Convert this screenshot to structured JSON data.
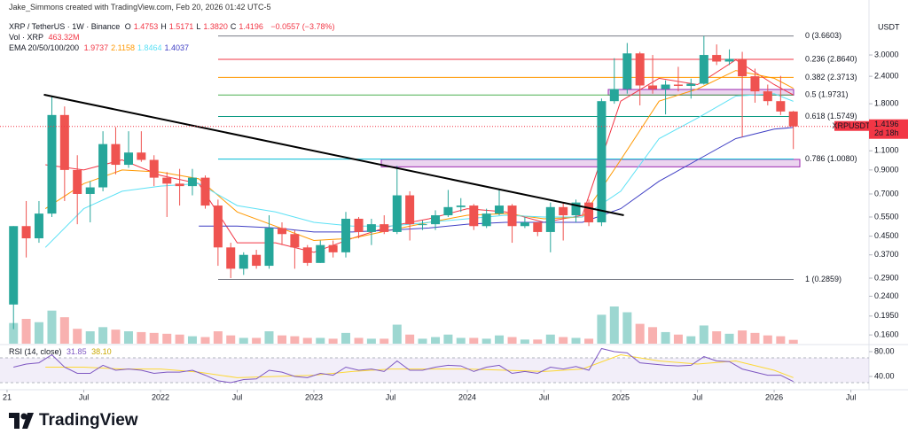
{
  "header": {
    "author_line": "Jake_Simmons created with TradingView.com, Feb 20, 2026 01:42 UTC-5",
    "symbol": "XRP / TetherUS · 1W · Binance",
    "ohlc": [
      {
        "key": "O",
        "value": "1.4753"
      },
      {
        "key": "H",
        "value": "1.5171"
      },
      {
        "key": "L",
        "value": "1.3820"
      },
      {
        "key": "C",
        "value": "1.4196"
      }
    ],
    "change": "−0.0557 (−3.78%)",
    "volume_label": "Vol · XRP",
    "volume_value": "463.32M",
    "ema_label": "EMA 20/50/100/200",
    "ema_values": [
      "1.9737",
      "2.1158",
      "1.8464",
      "1.4037"
    ]
  },
  "chart_data": {
    "type": "candlestick",
    "currency": "USDT",
    "log_scale": true,
    "grid": false,
    "x": [
      2021.042,
      2021.125,
      2021.208,
      2021.292,
      2021.375,
      2021.458,
      2021.542,
      2021.625,
      2021.708,
      2021.792,
      2021.875,
      2021.958,
      2022.042,
      2022.125,
      2022.208,
      2022.292,
      2022.375,
      2022.458,
      2022.542,
      2022.625,
      2022.708,
      2022.792,
      2022.875,
      2022.958,
      2023.042,
      2023.125,
      2023.208,
      2023.292,
      2023.375,
      2023.458,
      2023.542,
      2023.625,
      2023.708,
      2023.792,
      2023.875,
      2023.958,
      2024.042,
      2024.125,
      2024.208,
      2024.292,
      2024.375,
      2024.458,
      2024.542,
      2024.625,
      2024.708,
      2024.792,
      2024.875,
      2024.958,
      2025.042,
      2025.125,
      2025.208,
      2025.292,
      2025.375,
      2025.458,
      2025.542,
      2025.625,
      2025.708,
      2025.792,
      2025.875,
      2025.958,
      2026.042,
      2026.125
    ],
    "open": [
      0.22,
      0.5,
      0.44,
      0.57,
      1.6,
      0.9,
      0.7,
      0.75,
      1.18,
      0.95,
      1.08,
      1.0,
      0.83,
      0.78,
      0.76,
      0.83,
      0.62,
      0.4,
      0.32,
      0.37,
      0.33,
      0.49,
      0.46,
      0.4,
      0.34,
      0.41,
      0.38,
      0.54,
      0.47,
      0.51,
      0.47,
      0.69,
      0.51,
      0.51,
      0.56,
      0.61,
      0.62,
      0.5,
      0.57,
      0.62,
      0.5,
      0.52,
      0.47,
      0.61,
      0.56,
      0.64,
      0.52,
      1.85,
      2.1,
      3.05,
      2.18,
      2.1,
      2.2,
      2.17,
      2.22,
      3.0,
      2.8,
      2.88,
      2.4,
      2.05,
      1.85,
      1.66
    ],
    "high": [
      0.5,
      0.65,
      0.65,
      1.96,
      1.75,
      1.05,
      0.8,
      1.35,
      1.41,
      1.35,
      1.35,
      1.05,
      0.88,
      0.91,
      0.91,
      0.85,
      0.66,
      0.42,
      0.38,
      0.39,
      0.56,
      0.52,
      0.48,
      0.41,
      0.43,
      0.43,
      0.58,
      0.55,
      0.54,
      0.56,
      0.94,
      0.72,
      0.53,
      0.59,
      0.73,
      0.67,
      0.63,
      0.6,
      0.74,
      0.63,
      0.55,
      0.52,
      0.64,
      0.64,
      0.66,
      0.66,
      1.9,
      2.9,
      3.4,
      3.1,
      3.0,
      2.3,
      2.65,
      2.34,
      3.66,
      3.35,
      3.18,
      3.1,
      2.6,
      2.2,
      2.41,
      1.67
    ],
    "low": [
      0.17,
      0.36,
      0.42,
      0.55,
      0.65,
      0.51,
      0.52,
      0.72,
      0.86,
      0.92,
      0.98,
      0.76,
      0.55,
      0.62,
      0.69,
      0.6,
      0.33,
      0.29,
      0.3,
      0.32,
      0.32,
      0.41,
      0.32,
      0.33,
      0.34,
      0.36,
      0.36,
      0.44,
      0.41,
      0.46,
      0.46,
      0.43,
      0.48,
      0.48,
      0.55,
      0.58,
      0.48,
      0.49,
      0.56,
      0.42,
      0.49,
      0.45,
      0.38,
      0.43,
      0.52,
      0.5,
      0.5,
      1.8,
      2.0,
      1.77,
      2.0,
      1.61,
      2.05,
      1.9,
      2.2,
      2.7,
      2.7,
      1.27,
      1.82,
      1.77,
      1.6,
      1.12
    ],
    "close": [
      0.5,
      0.44,
      0.57,
      1.6,
      0.9,
      0.7,
      0.75,
      1.18,
      0.95,
      1.08,
      1.0,
      0.83,
      0.78,
      0.76,
      0.83,
      0.62,
      0.4,
      0.32,
      0.37,
      0.33,
      0.49,
      0.46,
      0.4,
      0.34,
      0.41,
      0.38,
      0.54,
      0.47,
      0.51,
      0.47,
      0.69,
      0.51,
      0.51,
      0.56,
      0.61,
      0.62,
      0.5,
      0.57,
      0.62,
      0.5,
      0.52,
      0.47,
      0.61,
      0.56,
      0.64,
      0.52,
      1.85,
      2.1,
      3.05,
      2.18,
      2.1,
      2.2,
      2.17,
      2.22,
      3.0,
      2.8,
      2.88,
      2.4,
      2.05,
      1.85,
      1.66,
      1.4196
    ],
    "volume": [
      2500,
      3000,
      2600,
      4000,
      3200,
      1800,
      1500,
      2000,
      1700,
      1500,
      1400,
      1300,
      1200,
      1100,
      900,
      800,
      1500,
      1000,
      700,
      700,
      1500,
      1000,
      900,
      700,
      700,
      600,
      1300,
      700,
      600,
      600,
      2300,
      1100,
      600,
      800,
      1100,
      700,
      700,
      600,
      1000,
      800,
      500,
      500,
      1100,
      800,
      700,
      600,
      3500,
      4500,
      3800,
      2400,
      2000,
      1400,
      1100,
      900,
      2200,
      1500,
      1200,
      1600,
      1300,
      1000,
      900,
      463.32
    ],
    "up_color": "#26a69a",
    "down_color": "#ef5350",
    "xlim": [
      2020.954,
      2026.618
    ],
    "xticks": [
      {
        "value": 2021,
        "label": "21"
      },
      {
        "value": 2021.5,
        "label": "Jul"
      },
      2022,
      {
        "value": 2022.5,
        "label": "Jul"
      },
      2023,
      {
        "value": 2023.5,
        "label": "Jul"
      },
      2024,
      {
        "value": 2024.5,
        "label": "Jul"
      },
      2025,
      {
        "value": 2025.5,
        "label": "Jul"
      },
      2026,
      {
        "value": 2026.5,
        "label": "Jul"
      }
    ],
    "ylim": [
      0.146,
      4.23
    ],
    "yticks": [
      {
        "value": 3,
        "label": "3.0000"
      },
      {
        "value": 2.4,
        "label": "2.4000"
      },
      {
        "value": 1.8,
        "label": "1.8000"
      },
      {
        "value": 1.1,
        "label": "1.1000"
      },
      {
        "value": 0.9,
        "label": "0.9000"
      },
      {
        "value": 0.7,
        "label": "0.7000"
      },
      {
        "value": 0.55,
        "label": "0.5500"
      },
      {
        "value": 0.45,
        "label": "0.4500"
      },
      {
        "value": 0.37,
        "label": "0.3700"
      },
      {
        "value": 0.29,
        "label": "0.2900"
      },
      {
        "value": 0.24,
        "label": "0.2400"
      },
      {
        "value": 0.195,
        "label": "0.1950"
      },
      {
        "value": 0.16,
        "label": "0.1600"
      }
    ],
    "ema": {
      "x": [
        2021.25,
        2021.5,
        2021.75,
        2022.0,
        2022.25,
        2022.5,
        2022.75,
        2023.0,
        2023.25,
        2023.5,
        2023.75,
        2024.0,
        2024.25,
        2024.5,
        2024.75,
        2025.0,
        2025.25,
        2025.5,
        2025.75,
        2026.0,
        2026.125
      ],
      "series": [
        {
          "color": "#f23645",
          "values": [
            0.95,
            0.9,
            1.0,
            0.85,
            0.78,
            0.42,
            0.42,
            0.38,
            0.44,
            0.5,
            0.54,
            0.6,
            0.58,
            0.52,
            0.56,
            1.85,
            2.35,
            2.2,
            2.85,
            2.2,
            1.9737
          ]
        },
        {
          "color": "#ff9800",
          "values": [
            0.6,
            0.78,
            0.9,
            0.88,
            0.82,
            0.58,
            0.5,
            0.43,
            0.44,
            0.48,
            0.52,
            0.56,
            0.57,
            0.54,
            0.55,
            1.0,
            1.85,
            2.1,
            2.55,
            2.35,
            2.1158
          ]
        },
        {
          "color": "#5ce1f5",
          "values": [
            0.4,
            0.6,
            0.72,
            0.76,
            0.78,
            0.62,
            0.58,
            0.52,
            0.5,
            0.5,
            0.52,
            0.54,
            0.56,
            0.55,
            0.55,
            0.72,
            1.25,
            1.55,
            1.95,
            2.0,
            1.8464
          ]
        },
        {
          "color": "#3f3fc4",
          "values": [
            null,
            null,
            null,
            null,
            0.5,
            0.5,
            0.49,
            0.47,
            0.47,
            0.48,
            0.49,
            0.51,
            0.52,
            0.52,
            0.52,
            0.6,
            0.8,
            1.0,
            1.25,
            1.38,
            1.4037
          ]
        }
      ]
    },
    "fib_levels": [
      {
        "label": "0 (3.6603)",
        "value": 3.6603,
        "color": "#787b86"
      },
      {
        "label": "0.236 (2.8640)",
        "value": 2.864,
        "color": "#f23645"
      },
      {
        "label": "0.382 (2.3713)",
        "value": 2.3713,
        "color": "#ff9800"
      },
      {
        "label": "0.5 (1.9731)",
        "value": 1.9731,
        "color": "#4caf50"
      },
      {
        "label": "0.618 (1.5749)",
        "value": 1.5749,
        "color": "#089981"
      },
      {
        "label": "0.786 (1.0080)",
        "value": 1.008,
        "color": "#00bcd4"
      },
      {
        "label": "1 (0.2859)",
        "value": 0.2859,
        "color": "#787b86"
      }
    ],
    "zones": [
      {
        "low": 1.97,
        "high": 2.09,
        "color": "#9c27b0"
      },
      {
        "low": 0.93,
        "high": 1.005,
        "color": "#9c27b0"
      }
    ],
    "trendline": {
      "x": [
        2021.24,
        2025.02
      ],
      "y": [
        1.98,
        0.56
      ],
      "color": "#000000"
    },
    "price_tag": {
      "symbol": "XRPUSDT",
      "price": 1.4196,
      "countdown": "2d 18h",
      "color": "#f23645"
    },
    "rsi": {
      "label": "RSI (14, close)",
      "current": "31.85",
      "ma_current": "38.10",
      "color": "#7e57c2",
      "ma_color": "#fdd835",
      "values": [
        55,
        60,
        62,
        75,
        55,
        45,
        45,
        58,
        50,
        52,
        50,
        45,
        47,
        47,
        50,
        42,
        33,
        30,
        35,
        36,
        50,
        47,
        40,
        38,
        45,
        42,
        55,
        50,
        52,
        48,
        65,
        50,
        50,
        55,
        58,
        57,
        48,
        55,
        58,
        45,
        48,
        45,
        55,
        52,
        56,
        50,
        85,
        80,
        78,
        62,
        60,
        58,
        57,
        58,
        72,
        65,
        64,
        52,
        47,
        42,
        42,
        31.85
      ],
      "ma_x": [
        2021.25,
        2021.5,
        2021.75,
        2022.0,
        2022.25,
        2022.5,
        2022.75,
        2023.0,
        2023.25,
        2023.5,
        2023.75,
        2024.0,
        2024.25,
        2024.5,
        2024.75,
        2025.0,
        2025.25,
        2025.5,
        2025.75,
        2026.0,
        2026.125
      ],
      "ma": [
        55,
        55,
        52,
        52,
        47,
        38,
        40,
        42,
        48,
        52,
        52,
        52,
        50,
        48,
        52,
        75,
        65,
        60,
        65,
        50,
        38.1
      ],
      "ylim": [
        25.7,
        90
      ],
      "yticks": [
        {
          "value": 80,
          "label": "80.00"
        },
        {
          "value": 40,
          "label": "40.00"
        }
      ],
      "band": [
        30,
        70
      ]
    }
  },
  "footer": {
    "brand": "TradingView"
  }
}
